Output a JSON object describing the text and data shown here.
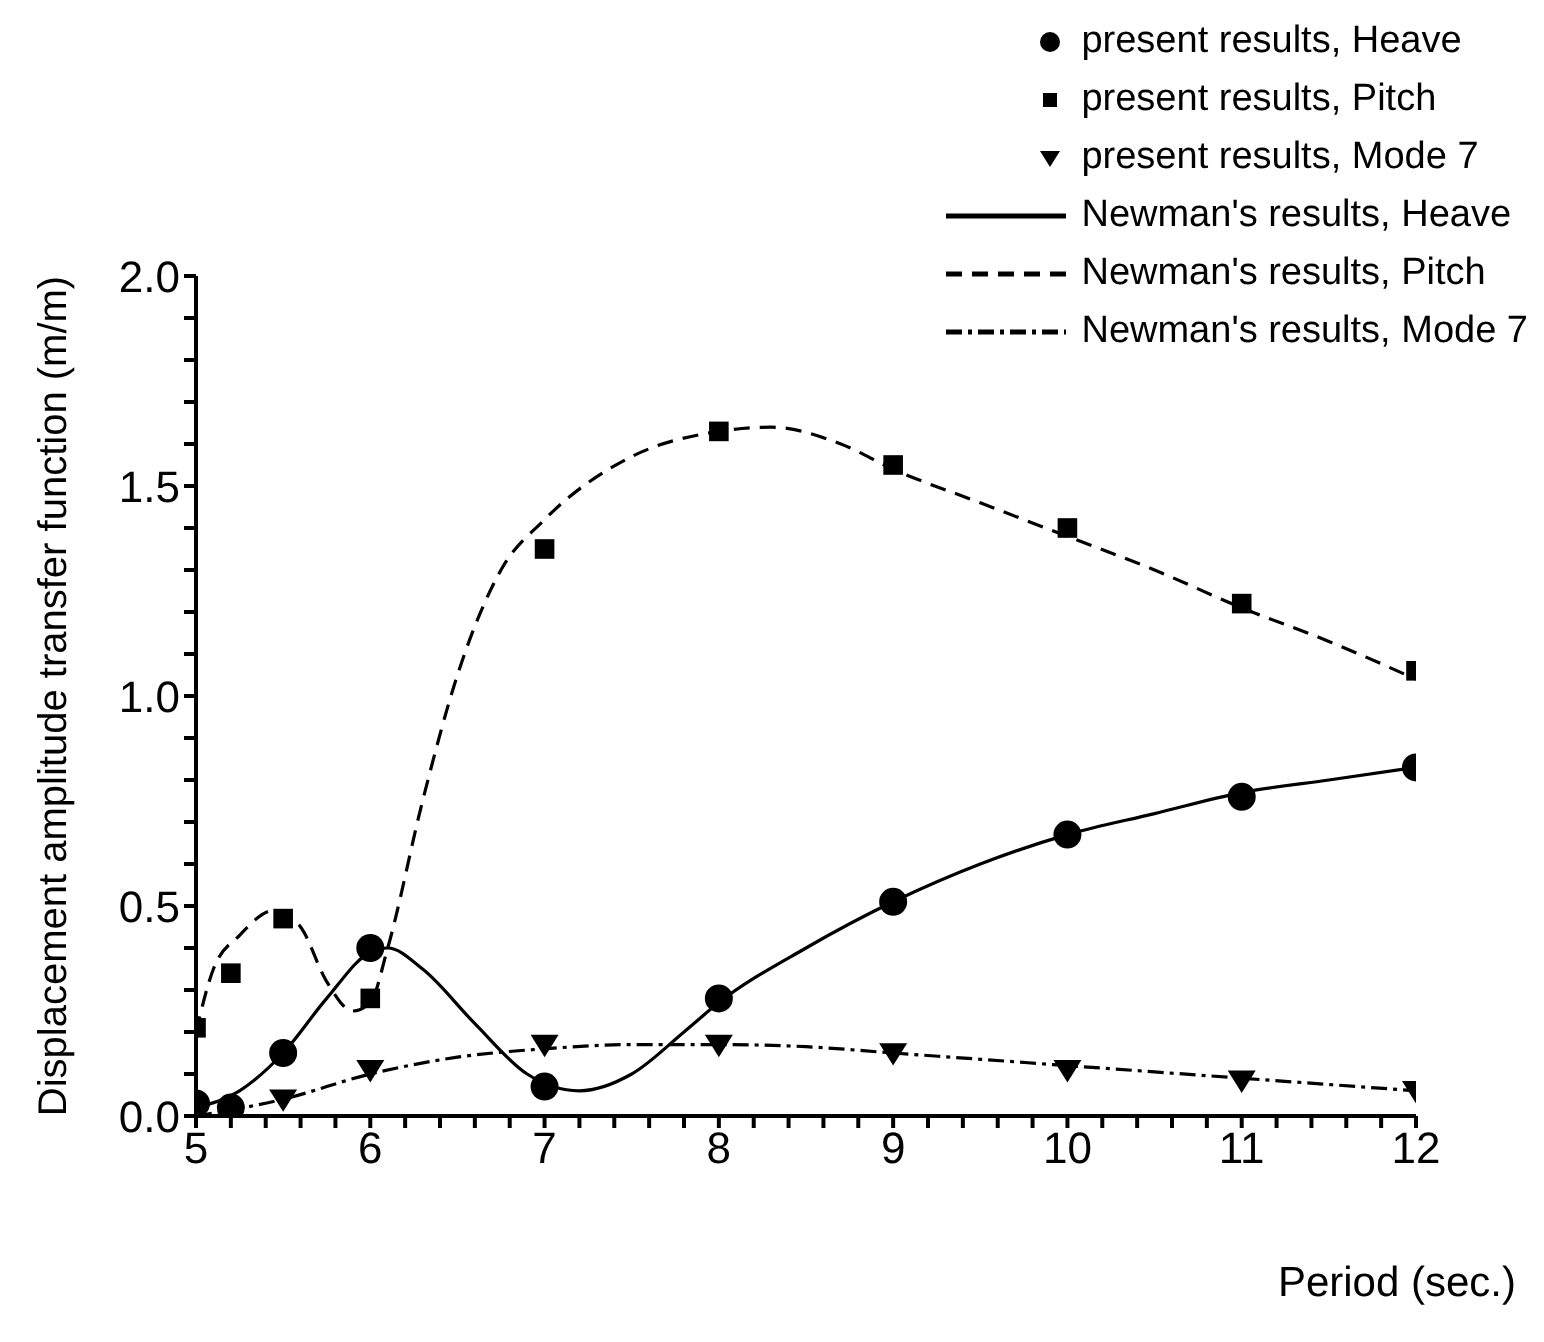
{
  "chart_data": {
    "type": "scatter",
    "xlabel": "Period (sec.)",
    "ylabel": "Displacement amplitude transfer function (m/m)",
    "xlim": [
      5,
      12
    ],
    "ylim": [
      0,
      2
    ],
    "xticks": [
      5,
      {
        "value": 5.2,
        "label": null
      },
      {
        "value": 5.4,
        "label": null
      },
      {
        "value": 5.6,
        "label": null
      },
      {
        "value": 5.8,
        "label": null
      },
      6,
      {
        "value": 6.2,
        "label": null
      },
      {
        "value": 6.4,
        "label": null
      },
      {
        "value": 6.6,
        "label": null
      },
      {
        "value": 6.8,
        "label": null
      },
      7,
      {
        "value": 7.2,
        "label": null
      },
      {
        "value": 7.4,
        "label": null
      },
      {
        "value": 7.6,
        "label": null
      },
      {
        "value": 7.8,
        "label": null
      },
      8,
      {
        "value": 8.2,
        "label": null
      },
      {
        "value": 8.4,
        "label": null
      },
      {
        "value": 8.6,
        "label": null
      },
      {
        "value": 8.8,
        "label": null
      },
      9,
      {
        "value": 9.2,
        "label": null
      },
      {
        "value": 9.4,
        "label": null
      },
      {
        "value": 9.6,
        "label": null
      },
      {
        "value": 9.8,
        "label": null
      },
      10,
      {
        "value": 10.2,
        "label": null
      },
      {
        "value": 10.4,
        "label": null
      },
      {
        "value": 10.6,
        "label": null
      },
      {
        "value": 10.8,
        "label": null
      },
      11,
      {
        "value": 11.2,
        "label": null
      },
      {
        "value": 11.4,
        "label": null
      },
      {
        "value": 11.6,
        "label": null
      },
      {
        "value": 11.8,
        "label": null
      },
      12
    ],
    "yticks": [
      {
        "value": 0,
        "label": "0.0"
      },
      {
        "value": 0.1,
        "label": null
      },
      {
        "value": 0.2,
        "label": null
      },
      {
        "value": 0.3,
        "label": null
      },
      {
        "value": 0.4,
        "label": null
      },
      {
        "value": 0.5,
        "label": "0.5"
      },
      {
        "value": 0.6,
        "label": null
      },
      {
        "value": 0.7,
        "label": null
      },
      {
        "value": 0.8,
        "label": null
      },
      {
        "value": 0.9,
        "label": null
      },
      {
        "value": 1,
        "label": "1.0"
      },
      {
        "value": 1.1,
        "label": null
      },
      {
        "value": 1.2,
        "label": null
      },
      {
        "value": 1.3,
        "label": null
      },
      {
        "value": 1.4,
        "label": null
      },
      {
        "value": 1.5,
        "label": "1.5"
      },
      {
        "value": 1.6,
        "label": null
      },
      {
        "value": 1.7,
        "label": null
      },
      {
        "value": 1.8,
        "label": null
      },
      {
        "value": 1.9,
        "label": null
      },
      {
        "value": 2,
        "label": "2.0"
      }
    ],
    "grid": false,
    "legend": "top right",
    "series": [
      {
        "name": "present results, Heave",
        "marker": "circle",
        "color": "#000000",
        "x": [
          5,
          5.2,
          5.5,
          6,
          7,
          8,
          9,
          10,
          11,
          12
        ],
        "values": [
          0.03,
          0.02,
          0.15,
          0.4,
          0.07,
          0.28,
          0.51,
          0.67,
          0.76,
          0.83
        ]
      },
      {
        "name": "present results, Pitch",
        "marker": "square",
        "color": "#000000",
        "x": [
          5,
          5.2,
          5.5,
          6,
          7,
          8,
          9,
          10,
          11,
          12
        ],
        "values": [
          0.21,
          0.34,
          0.47,
          0.28,
          1.35,
          1.63,
          1.55,
          1.4,
          1.22,
          1.06
        ]
      },
      {
        "name": "present results, Mode 7",
        "marker": "triangle",
        "color": "#000000",
        "x": [
          5.5,
          6,
          7,
          8,
          9,
          10,
          11,
          12
        ],
        "values": [
          0.04,
          0.11,
          0.17,
          0.17,
          0.15,
          0.11,
          0.085,
          0.06
        ]
      },
      {
        "name": "Newman's results, Heave",
        "type": "line",
        "line_style": "solid",
        "color": "#000000",
        "x": [
          5,
          5.25,
          5.5,
          5.75,
          6,
          6.1,
          6.3,
          6.6,
          6.9,
          7.2,
          7.5,
          7.8,
          8,
          8.5,
          9,
          9.5,
          10,
          10.5,
          11,
          11.5,
          12
        ],
        "values": [
          0.02,
          0.06,
          0.15,
          0.28,
          0.39,
          0.4,
          0.35,
          0.22,
          0.1,
          0.06,
          0.1,
          0.2,
          0.27,
          0.4,
          0.51,
          0.6,
          0.67,
          0.72,
          0.77,
          0.8,
          0.83
        ]
      },
      {
        "name": "Newman's results, Pitch",
        "type": "line",
        "line_style": "dashed",
        "color": "#000000",
        "x": [
          5,
          5.1,
          5.25,
          5.45,
          5.6,
          5.75,
          5.9,
          6,
          6.1,
          6.3,
          6.5,
          6.75,
          7,
          7.5,
          8,
          8.3,
          8.7,
          9,
          9.5,
          10,
          10.5,
          11,
          11.5,
          12
        ],
        "values": [
          0.2,
          0.35,
          0.43,
          0.49,
          0.45,
          0.32,
          0.25,
          0.27,
          0.4,
          0.75,
          1.05,
          1.3,
          1.42,
          1.57,
          1.63,
          1.64,
          1.6,
          1.54,
          1.46,
          1.38,
          1.3,
          1.21,
          1.13,
          1.04
        ]
      },
      {
        "name": "Newman's results, Mode 7",
        "type": "line",
        "line_style": "dotted",
        "color": "#000000",
        "x": [
          5,
          5.5,
          6,
          6.5,
          7,
          7.5,
          8,
          8.5,
          9,
          9.5,
          10,
          10.5,
          11,
          11.5,
          12
        ],
        "values": [
          0,
          0.04,
          0.1,
          0.14,
          0.16,
          0.17,
          0.17,
          0.165,
          0.15,
          0.135,
          0.12,
          0.105,
          0.09,
          0.075,
          0.06
        ]
      }
    ]
  }
}
